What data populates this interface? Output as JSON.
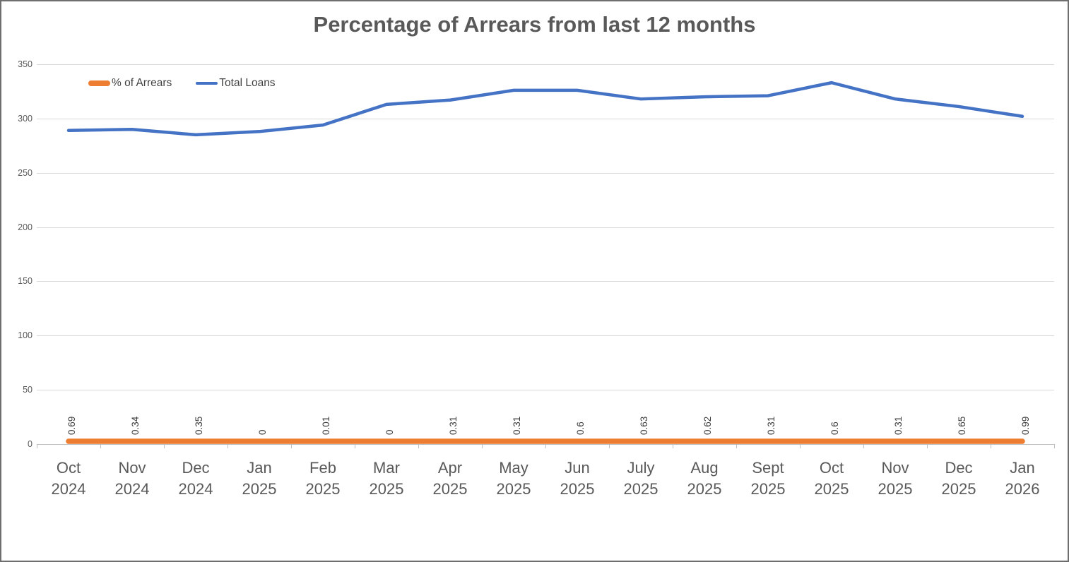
{
  "title": "Percentage of Arrears from last 12 months",
  "colors": {
    "background": "#FFFFFF",
    "border": "#6E6E6E",
    "gridline": "#D9D9D9",
    "axis_line": "#BFBFBF",
    "title_text": "#595959",
    "axis_text": "#595959",
    "data_label_text": "#3B3B3B",
    "arrears_orange": "#ED7D31",
    "loans_blue": "#4472C4"
  },
  "chart_data": {
    "type": "line",
    "title": "Percentage of Arrears from last 12 months",
    "xlabel": "",
    "ylabel": "",
    "ylim": [
      0,
      350
    ],
    "yticks": [
      0,
      50,
      100,
      150,
      200,
      250,
      300,
      350
    ],
    "grid": true,
    "legend_position": "top-left-inside",
    "categories": [
      {
        "month": "Oct",
        "year": "2024"
      },
      {
        "month": "Nov",
        "year": "2024"
      },
      {
        "month": "Dec",
        "year": "2024"
      },
      {
        "month": "Jan",
        "year": "2025"
      },
      {
        "month": "Feb",
        "year": "2025"
      },
      {
        "month": "Mar",
        "year": "2025"
      },
      {
        "month": "Apr",
        "year": "2025"
      },
      {
        "month": "May",
        "year": "2025"
      },
      {
        "month": "Jun",
        "year": "2025"
      },
      {
        "month": "July",
        "year": "2025"
      },
      {
        "month": "Aug",
        "year": "2025"
      },
      {
        "month": "Sept",
        "year": "2025"
      },
      {
        "month": "Oct",
        "year": "2025"
      },
      {
        "month": "Nov",
        "year": "2025"
      },
      {
        "month": "Dec",
        "year": "2025"
      },
      {
        "month": "Jan",
        "year": "2026"
      }
    ],
    "series": [
      {
        "name": "% of Arrears",
        "color": "#ED7D31",
        "stroke_width": 7.5,
        "values": [
          0.69,
          0.34,
          0.35,
          0,
          0.01,
          0,
          0.31,
          0.31,
          0.6,
          0.63,
          0.62,
          0.31,
          0.6,
          0.31,
          0.65,
          0.99
        ],
        "data_labels": [
          "0.69",
          "0.34",
          "0.35",
          "0",
          "0.01",
          "0",
          "0.31",
          "0.31",
          "0.6",
          "0.63",
          "0.62",
          "0.31",
          "0.6",
          "0.31",
          "0.65",
          "0.99"
        ]
      },
      {
        "name": "Total Loans",
        "color": "#4472C4",
        "stroke_width": 4.5,
        "values": [
          289,
          290,
          285,
          288,
          294,
          313,
          317,
          326,
          326,
          318,
          320,
          321,
          333,
          318,
          311,
          302
        ]
      }
    ]
  }
}
